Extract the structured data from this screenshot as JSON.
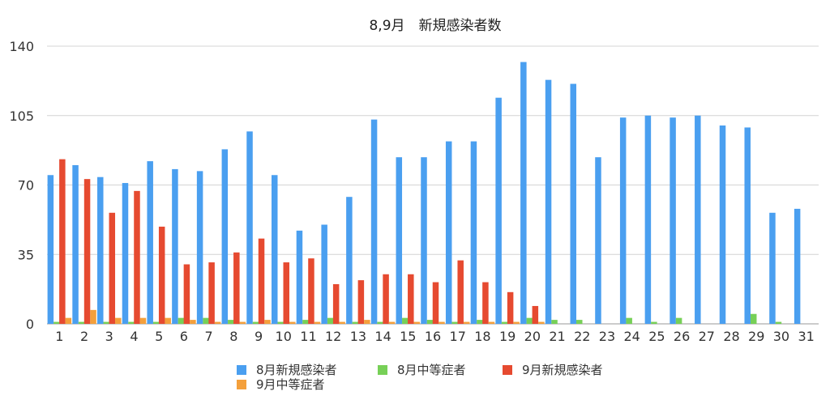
{
  "chart_data": {
    "type": "bar",
    "title": "8,9月　新規感染者数",
    "xlabel": "",
    "ylabel": "",
    "ylim": [
      0,
      140
    ],
    "yticks": [
      0,
      35,
      70,
      105,
      140
    ],
    "grid": true,
    "legend_position": "bottom",
    "categories": [
      "1",
      "2",
      "3",
      "4",
      "5",
      "6",
      "7",
      "8",
      "9",
      "10",
      "11",
      "12",
      "13",
      "14",
      "15",
      "16",
      "17",
      "18",
      "19",
      "20",
      "21",
      "22",
      "23",
      "24",
      "25",
      "26",
      "27",
      "28",
      "29",
      "30",
      "31"
    ],
    "series": [
      {
        "name": "8月新規感染者",
        "color": "#4a9ff0",
        "values": [
          75,
          80,
          74,
          71,
          82,
          78,
          77,
          88,
          97,
          75,
          47,
          50,
          64,
          103,
          84,
          84,
          92,
          92,
          114,
          132,
          123,
          121,
          84,
          104,
          105,
          104,
          105,
          100,
          99,
          56,
          58
        ]
      },
      {
        "name": "8月中等症者",
        "color": "#77d057",
        "values": [
          1,
          1,
          1,
          1,
          1,
          3,
          3,
          2,
          1,
          1,
          2,
          3,
          1,
          1,
          3,
          2,
          1,
          2,
          1,
          3,
          2,
          2,
          0,
          3,
          1,
          3,
          0,
          0,
          5,
          1,
          0
        ]
      },
      {
        "name": "9月新規感染者",
        "color": "#e64a30",
        "values": [
          83,
          73,
          56,
          67,
          49,
          30,
          31,
          36,
          43,
          31,
          33,
          20,
          22,
          25,
          25,
          21,
          32,
          21,
          16,
          9,
          null,
          null,
          null,
          null,
          null,
          null,
          null,
          null,
          null,
          null,
          null
        ]
      },
      {
        "name": "9月中等症者",
        "color": "#f4a03c",
        "values": [
          3,
          7,
          3,
          3,
          3,
          2,
          1,
          1,
          2,
          1,
          1,
          1,
          2,
          1,
          1,
          1,
          1,
          1,
          1,
          1,
          null,
          null,
          null,
          null,
          null,
          null,
          null,
          null,
          null,
          null,
          null
        ]
      }
    ]
  }
}
